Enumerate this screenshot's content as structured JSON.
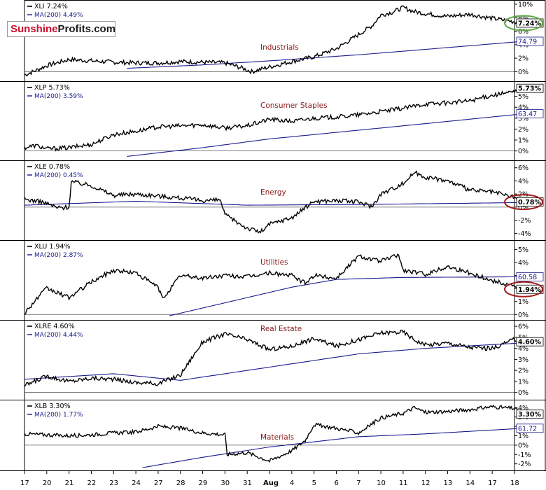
{
  "chart_data": {
    "type": "line",
    "watermark": {
      "part1": "Sunshine",
      "part2": "Profits.com"
    },
    "x_ticks": [
      "17",
      "20",
      "21",
      "22",
      "23",
      "24",
      "27",
      "28",
      "29",
      "30",
      "31",
      "Aug",
      "4",
      "5",
      "6",
      "7",
      "10",
      "11",
      "12",
      "13",
      "14",
      "17",
      "18"
    ],
    "colors": {
      "price": "#000000",
      "ma": "#1a1a8c",
      "ring_green": "#5fa846",
      "ring_red": "#a41c1c",
      "label": "#8b1a1a",
      "ref_line": "#666666"
    },
    "panels": [
      {
        "symbol": "XLI",
        "legend": "XLI 7.24%",
        "ma_legend": "MA(200) 4.49%",
        "title": "Industrials",
        "ylim": [
          -1,
          10
        ],
        "y_ticks": [
          "0%",
          "2%",
          "4%",
          "6%",
          "8%",
          "10%"
        ],
        "last_label": "7.24%",
        "ma_label": "74.79",
        "ring": "green",
        "anchors": [
          [
            0,
            -0.5
          ],
          [
            0.6,
            0.3
          ],
          [
            1,
            0.9
          ],
          [
            2,
            1.8
          ],
          [
            3,
            1.6
          ],
          [
            4,
            1.4
          ],
          [
            5,
            1.3
          ],
          [
            6,
            1.3
          ],
          [
            7,
            1.5
          ],
          [
            8,
            1.4
          ],
          [
            9,
            1.3
          ],
          [
            9.7,
            0.6
          ],
          [
            10.2,
            0.0
          ],
          [
            11,
            0.7
          ],
          [
            12,
            1.5
          ],
          [
            13,
            2.2
          ],
          [
            14,
            3.4
          ],
          [
            15,
            5.5
          ],
          [
            15.6,
            6.8
          ],
          [
            16,
            8.4
          ],
          [
            16.5,
            8.8
          ],
          [
            17,
            9.5
          ],
          [
            17.5,
            8.9
          ],
          [
            18,
            8.6
          ],
          [
            19,
            8.2
          ],
          [
            20,
            8.5
          ],
          [
            21,
            7.9
          ],
          [
            22,
            7.4
          ],
          [
            22.4,
            7.2
          ]
        ],
        "ma_anchors": [
          [
            4.6,
            0.5
          ],
          [
            8,
            1.0
          ],
          [
            11,
            1.6
          ],
          [
            15,
            2.5
          ],
          [
            18,
            3.3
          ],
          [
            22.4,
            4.5
          ]
        ]
      },
      {
        "symbol": "XLP",
        "legend": "XLP 5.73%",
        "ma_legend": "MA(200) 3.59%",
        "title": "Consumer Staples",
        "ylim": [
          -0.6,
          6
        ],
        "y_ticks": [
          "0%",
          "1%",
          "2%",
          "3%",
          "4%",
          "5%"
        ],
        "last_label": "5.73%",
        "ma_label": "63.47",
        "ring": "none",
        "anchors": [
          [
            0,
            0.3
          ],
          [
            0.5,
            0.5
          ],
          [
            1,
            0.2
          ],
          [
            2,
            0.3
          ],
          [
            3,
            0.6
          ],
          [
            4,
            1.5
          ],
          [
            5,
            1.8
          ],
          [
            6,
            2.2
          ],
          [
            7,
            2.3
          ],
          [
            8,
            2.4
          ],
          [
            9,
            2.1
          ],
          [
            10,
            2.3
          ],
          [
            11,
            2.9
          ],
          [
            12,
            2.7
          ],
          [
            13,
            3.0
          ],
          [
            14,
            3.1
          ],
          [
            15,
            3.3
          ],
          [
            16,
            3.6
          ],
          [
            17,
            3.9
          ],
          [
            18,
            4.3
          ],
          [
            19,
            4.4
          ],
          [
            20,
            4.6
          ],
          [
            21,
            5.1
          ],
          [
            22,
            5.4
          ],
          [
            22.4,
            5.73
          ]
        ],
        "ma_anchors": [
          [
            4.6,
            -0.5
          ],
          [
            8,
            0.3
          ],
          [
            11,
            1.1
          ],
          [
            15,
            1.9
          ],
          [
            18,
            2.5
          ],
          [
            22.4,
            3.4
          ]
        ]
      },
      {
        "symbol": "XLE",
        "legend": "XLE 0.78%",
        "ma_legend": "MA(200) 0.45%",
        "title": "Energy",
        "ylim": [
          -4.6,
          6.5
        ],
        "y_ticks": [
          "-4%",
          "-2%",
          "0%",
          "2%",
          "4%",
          "6%"
        ],
        "last_label": "0.78%",
        "ma_label": "",
        "ring": "red",
        "anchors": [
          [
            0,
            1.2
          ],
          [
            0.8,
            0.8
          ],
          [
            1.5,
            -0.1
          ],
          [
            2,
            0.0
          ],
          [
            2.1,
            3.9
          ],
          [
            3,
            3.3
          ],
          [
            4,
            1.8
          ],
          [
            5,
            2.0
          ],
          [
            6,
            1.7
          ],
          [
            7,
            1.4
          ],
          [
            8,
            1.0
          ],
          [
            8.8,
            1.1
          ],
          [
            9,
            -1.2
          ],
          [
            10,
            -3.2
          ],
          [
            10.6,
            -3.8
          ],
          [
            11,
            -2.6
          ],
          [
            12,
            -1.6
          ],
          [
            13,
            0.9
          ],
          [
            14,
            1.0
          ],
          [
            15,
            0.8
          ],
          [
            15.6,
            0.1
          ],
          [
            16,
            2.0
          ],
          [
            17,
            3.6
          ],
          [
            17.5,
            5.3
          ],
          [
            18,
            4.6
          ],
          [
            19,
            4.0
          ],
          [
            20,
            2.6
          ],
          [
            21,
            2.3
          ],
          [
            22,
            1.5
          ],
          [
            22.4,
            0.78
          ]
        ],
        "ma_anchors": [
          [
            0,
            0.3
          ],
          [
            5,
            0.9
          ],
          [
            10,
            0.3
          ],
          [
            15,
            0.4
          ],
          [
            20,
            0.6
          ],
          [
            22.4,
            0.7
          ]
        ]
      },
      {
        "symbol": "XLU",
        "legend": "XLU 1.94%",
        "ma_legend": "MA(200) 2.87%",
        "title": "Utilities",
        "ylim": [
          -0.2,
          5.4
        ],
        "y_ticks": [
          "0%",
          "1%",
          "2%",
          "3%",
          "4%",
          "5%"
        ],
        "last_label": "1.94%",
        "ma_label": "60.58",
        "ring": "red",
        "anchors": [
          [
            0,
            0.1
          ],
          [
            0.7,
            1.5
          ],
          [
            1,
            2.0
          ],
          [
            2,
            1.3
          ],
          [
            3,
            2.5
          ],
          [
            4,
            3.4
          ],
          [
            5,
            3.2
          ],
          [
            6,
            2.1
          ],
          [
            6.2,
            1.2
          ],
          [
            7,
            3.0
          ],
          [
            8,
            2.8
          ],
          [
            9,
            3.0
          ],
          [
            10,
            2.9
          ],
          [
            11,
            3.2
          ],
          [
            12,
            3.0
          ],
          [
            12.6,
            2.4
          ],
          [
            13,
            3.0
          ],
          [
            14,
            2.8
          ],
          [
            15,
            4.5
          ],
          [
            16,
            4.1
          ],
          [
            16.8,
            4.6
          ],
          [
            17,
            3.4
          ],
          [
            18,
            3.1
          ],
          [
            19,
            3.7
          ],
          [
            20,
            3.2
          ],
          [
            21,
            2.6
          ],
          [
            22,
            2.2
          ],
          [
            22.4,
            1.94
          ]
        ],
        "ma_anchors": [
          [
            6.5,
            -0.1
          ],
          [
            9,
            0.9
          ],
          [
            12,
            2.1
          ],
          [
            14,
            2.7
          ],
          [
            17,
            2.85
          ],
          [
            22.4,
            2.9
          ]
        ]
      },
      {
        "symbol": "XLRE",
        "legend": "XLRE 4.60%",
        "ma_legend": "MA(200) 4.44%",
        "title": "Real Estate",
        "ylim": [
          -0.4,
          6.2
        ],
        "y_ticks": [
          "0%",
          "1%",
          "2%",
          "3%",
          "4%",
          "5%",
          "6%"
        ],
        "last_label": "4.60%",
        "ma_label": "",
        "ring": "none",
        "anchors": [
          [
            0,
            0.6
          ],
          [
            1,
            1.5
          ],
          [
            2,
            1.0
          ],
          [
            3,
            1.3
          ],
          [
            4,
            1.2
          ],
          [
            5,
            0.9
          ],
          [
            6,
            0.8
          ],
          [
            7,
            1.6
          ],
          [
            8,
            4.6
          ],
          [
            9,
            5.3
          ],
          [
            10,
            4.8
          ],
          [
            11,
            3.9
          ],
          [
            12,
            4.2
          ],
          [
            13,
            4.9
          ],
          [
            14,
            4.2
          ],
          [
            15,
            4.8
          ],
          [
            16,
            5.4
          ],
          [
            17,
            5.5
          ],
          [
            17.5,
            4.8
          ],
          [
            18,
            4.3
          ],
          [
            19,
            4.5
          ],
          [
            20,
            4.1
          ],
          [
            21,
            4.0
          ],
          [
            22,
            4.8
          ],
          [
            22.4,
            4.6
          ]
        ],
        "ma_anchors": [
          [
            0,
            1.2
          ],
          [
            4,
            1.7
          ],
          [
            7,
            1.1
          ],
          [
            10,
            2.0
          ],
          [
            15,
            3.5
          ],
          [
            18,
            4.0
          ],
          [
            22.4,
            4.5
          ]
        ]
      },
      {
        "symbol": "XLB",
        "legend": "XLB 3.30%",
        "ma_legend": "MA(200) 1.77%",
        "title": "Materials",
        "ylim": [
          -2.4,
          4.4
        ],
        "y_ticks": [
          "-2%",
          "-1%",
          "0%",
          "1%",
          "2%",
          "3%",
          "4%"
        ],
        "last_label": "3.30%",
        "ma_label": "61.72",
        "ring": "none",
        "anchors": [
          [
            0,
            1.2
          ],
          [
            1,
            1.1
          ],
          [
            2,
            1.0
          ],
          [
            3,
            1.1
          ],
          [
            4,
            1.3
          ],
          [
            5,
            1.4
          ],
          [
            6,
            2.0
          ],
          [
            7,
            1.8
          ],
          [
            8,
            1.3
          ],
          [
            9,
            1.1
          ],
          [
            9.1,
            -1.0
          ],
          [
            10,
            -0.8
          ],
          [
            11,
            -1.7
          ],
          [
            12,
            -0.6
          ],
          [
            12.6,
            0.5
          ],
          [
            13,
            2.2
          ],
          [
            14,
            1.8
          ],
          [
            15,
            1.3
          ],
          [
            16,
            2.9
          ],
          [
            17,
            3.4
          ],
          [
            17.5,
            4.0
          ],
          [
            18,
            3.5
          ],
          [
            19,
            3.6
          ],
          [
            20,
            3.8
          ],
          [
            21,
            4.1
          ],
          [
            22,
            3.9
          ],
          [
            22.4,
            3.3
          ]
        ],
        "ma_anchors": [
          [
            5.3,
            -2.4
          ],
          [
            8,
            -1.3
          ],
          [
            11,
            -0.2
          ],
          [
            15,
            0.9
          ],
          [
            18,
            1.2
          ],
          [
            22.4,
            1.8
          ]
        ]
      }
    ]
  }
}
